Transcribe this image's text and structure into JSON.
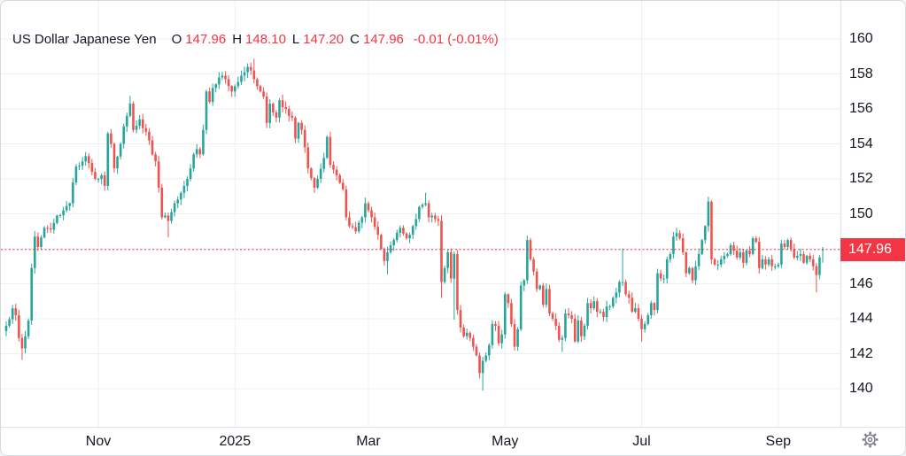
{
  "legend": {
    "title": "US Dollar Japanese Yen",
    "o_label": "O",
    "o": "147.96",
    "h_label": "H",
    "h": "148.10",
    "l_label": "L",
    "l": "147.20",
    "c_label": "C",
    "c": "147.96",
    "change": "-0.01 (-0.01%)"
  },
  "colors": {
    "up": "#26a69a",
    "down": "#ef5350",
    "accent": "#f23645",
    "text": "#131722",
    "grid": "#edeff3",
    "axis_border": "#e0e3eb",
    "icon": "#787b86",
    "label_text": "#ffffff"
  },
  "price_axis": {
    "last_price_label": "147.96",
    "ticks": [
      {
        "label": "160",
        "price": 160
      },
      {
        "label": "158",
        "price": 158
      },
      {
        "label": "156",
        "price": 156
      },
      {
        "label": "154",
        "price": 154
      },
      {
        "label": "152",
        "price": 152
      },
      {
        "label": "150",
        "price": 150
      },
      {
        "label": "148",
        "price": 148
      },
      {
        "label": "146",
        "price": 146
      },
      {
        "label": "144",
        "price": 144
      },
      {
        "label": "142",
        "price": 142
      },
      {
        "label": "140",
        "price": 140
      }
    ]
  },
  "time_axis": {
    "labels": [
      {
        "label": "Nov",
        "day": 29
      },
      {
        "label": "2025",
        "day": 72
      },
      {
        "label": "Mar",
        "day": 114
      },
      {
        "label": "May",
        "day": 157
      },
      {
        "label": "Jul",
        "day": 200
      },
      {
        "label": "Sep",
        "day": 243
      }
    ]
  },
  "settings_icon": "gear-icon",
  "chart_data": {
    "type": "candlestick",
    "title": "US Dollar Japanese Yen",
    "ohlc": {
      "open": 147.96,
      "high": 148.1,
      "low": 147.2,
      "close": 147.96,
      "change": -0.01,
      "change_pct": "-0.01%"
    },
    "ylim": [
      140,
      160
    ],
    "grid": true,
    "price_line": 147.96,
    "days_total": 258,
    "open_first": 143.3,
    "anchors": [
      [
        0,
        143.6
      ],
      [
        2,
        144.6
      ],
      [
        3,
        144.2
      ],
      [
        4,
        142.9
      ],
      [
        5,
        142.3
      ],
      [
        6,
        143.0
      ],
      [
        7,
        143.9
      ],
      [
        8,
        146.9
      ],
      [
        9,
        148.7
      ],
      [
        10,
        148.1
      ],
      [
        12,
        149.2
      ],
      [
        14,
        149.1
      ],
      [
        16,
        149.9
      ],
      [
        18,
        150.2
      ],
      [
        20,
        150.6
      ],
      [
        21,
        151.8
      ],
      [
        22,
        152.7
      ],
      [
        24,
        153.0
      ],
      [
        25,
        153.3
      ],
      [
        27,
        152.4
      ],
      [
        28,
        152.0
      ],
      [
        29,
        152.0
      ],
      [
        30,
        152.2
      ],
      [
        31,
        151.6
      ],
      [
        32,
        154.6
      ],
      [
        33,
        154.0
      ],
      [
        34,
        152.6
      ],
      [
        36,
        154.0
      ],
      [
        37,
        155.0
      ],
      [
        38,
        155.6
      ],
      [
        39,
        156.3
      ],
      [
        40,
        154.8
      ],
      [
        42,
        155.4
      ],
      [
        43,
        154.9
      ],
      [
        44,
        154.7
      ],
      [
        45,
        154.2
      ],
      [
        46,
        153.4
      ],
      [
        47,
        153.0
      ],
      [
        48,
        151.5
      ],
      [
        49,
        149.8
      ],
      [
        50,
        149.9
      ],
      [
        51,
        149.6
      ],
      [
        52,
        150.1
      ],
      [
        53,
        150.6
      ],
      [
        55,
        151.2
      ],
      [
        57,
        152.0
      ],
      [
        58,
        152.6
      ],
      [
        59,
        153.4
      ],
      [
        60,
        153.7
      ],
      [
        61,
        153.4
      ],
      [
        62,
        154.8
      ],
      [
        63,
        157.0
      ],
      [
        64,
        156.4
      ],
      [
        65,
        157.2
      ],
      [
        66,
        157.4
      ],
      [
        67,
        157.8
      ],
      [
        68,
        157.9
      ],
      [
        69,
        157.7
      ],
      [
        70,
        157.3
      ],
      [
        71,
        157.0
      ],
      [
        72,
        157.3
      ],
      [
        74,
        157.9
      ],
      [
        75,
        158.1
      ],
      [
        76,
        158.4
      ],
      [
        77,
        158.2
      ],
      [
        78,
        157.7
      ],
      [
        79,
        157.3
      ],
      [
        80,
        157.0
      ],
      [
        81,
        156.7
      ],
      [
        82,
        155.2
      ],
      [
        83,
        156.3
      ],
      [
        84,
        155.8
      ],
      [
        85,
        155.5
      ],
      [
        86,
        156.5
      ],
      [
        87,
        156.1
      ],
      [
        88,
        156.0
      ],
      [
        89,
        155.6
      ],
      [
        90,
        155.5
      ],
      [
        91,
        154.3
      ],
      [
        92,
        155.2
      ],
      [
        93,
        154.8
      ],
      [
        95,
        152.6
      ],
      [
        97,
        151.5
      ],
      [
        98,
        152.0
      ],
      [
        100,
        153.2
      ],
      [
        101,
        154.4
      ],
      [
        102,
        152.8
      ],
      [
        104,
        152.2
      ],
      [
        106,
        151.4
      ],
      [
        107,
        149.8
      ],
      [
        108,
        149.3
      ],
      [
        110,
        149.0
      ],
      [
        112,
        149.8
      ],
      [
        113,
        150.6
      ],
      [
        114,
        150.2
      ],
      [
        115,
        149.8
      ],
      [
        117,
        148.8
      ],
      [
        118,
        148.0
      ],
      [
        119,
        147.3
      ],
      [
        120,
        147.8
      ],
      [
        121,
        148.2
      ],
      [
        122,
        148.5
      ],
      [
        124,
        149.2
      ],
      [
        126,
        148.6
      ],
      [
        127,
        148.8
      ],
      [
        128,
        149.3
      ],
      [
        129,
        149.7
      ],
      [
        130,
        150.4
      ],
      [
        132,
        150.6
      ],
      [
        133,
        149.8
      ],
      [
        134,
        149.9
      ],
      [
        135,
        149.7
      ],
      [
        136,
        149.6
      ],
      [
        137,
        146.1
      ],
      [
        138,
        146.9
      ],
      [
        139,
        147.8
      ],
      [
        140,
        146.3
      ],
      [
        141,
        147.7
      ],
      [
        142,
        144.5
      ],
      [
        143,
        143.5
      ],
      [
        144,
        143.0
      ],
      [
        145,
        143.2
      ],
      [
        146,
        142.9
      ],
      [
        147,
        142.4
      ],
      [
        148,
        141.9
      ],
      [
        149,
        140.9
      ],
      [
        150,
        141.6
      ],
      [
        151,
        141.9
      ],
      [
        152,
        142.5
      ],
      [
        153,
        143.7
      ],
      [
        154,
        143.6
      ],
      [
        155,
        142.6
      ],
      [
        156,
        143.1
      ],
      [
        157,
        145.4
      ],
      [
        158,
        144.9
      ],
      [
        159,
        143.7
      ],
      [
        160,
        142.4
      ],
      [
        161,
        143.4
      ],
      [
        162,
        145.9
      ],
      [
        163,
        146.2
      ],
      [
        164,
        148.5
      ],
      [
        165,
        147.4
      ],
      [
        166,
        146.7
      ],
      [
        167,
        145.7
      ],
      [
        168,
        145.9
      ],
      [
        169,
        144.8
      ],
      [
        170,
        145.7
      ],
      [
        171,
        144.3
      ],
      [
        172,
        144.0
      ],
      [
        173,
        143.6
      ],
      [
        174,
        142.8
      ],
      [
        175,
        142.9
      ],
      [
        176,
        144.3
      ],
      [
        177,
        144.2
      ],
      [
        178,
        144.0
      ],
      [
        179,
        142.7
      ],
      [
        180,
        143.9
      ],
      [
        181,
        143.0
      ],
      [
        182,
        143.6
      ],
      [
        183,
        144.9
      ],
      [
        184,
        144.6
      ],
      [
        185,
        145.0
      ],
      [
        186,
        144.4
      ],
      [
        187,
        144.4
      ],
      [
        188,
        144.1
      ],
      [
        189,
        144.7
      ],
      [
        190,
        144.7
      ],
      [
        191,
        145.2
      ],
      [
        192,
        145.5
      ],
      [
        193,
        146.1
      ],
      [
        194,
        146.1
      ],
      [
        195,
        145.4
      ],
      [
        196,
        145.2
      ],
      [
        197,
        144.4
      ],
      [
        198,
        144.6
      ],
      [
        199,
        144.0
      ],
      [
        200,
        143.4
      ],
      [
        201,
        143.7
      ],
      [
        202,
        144.2
      ],
      [
        203,
        144.9
      ],
      [
        204,
        144.5
      ],
      [
        205,
        146.6
      ],
      [
        206,
        146.3
      ],
      [
        207,
        146.3
      ],
      [
        208,
        147.4
      ],
      [
        209,
        147.7
      ],
      [
        210,
        148.7
      ],
      [
        211,
        148.9
      ],
      [
        212,
        148.6
      ],
      [
        213,
        147.8
      ],
      [
        214,
        146.6
      ],
      [
        215,
        146.9
      ],
      [
        216,
        146.2
      ],
      [
        217,
        147.0
      ],
      [
        218,
        147.7
      ],
      [
        219,
        148.5
      ],
      [
        220,
        149.3
      ],
      [
        221,
        150.7
      ],
      [
        222,
        147.4
      ],
      [
        223,
        147.1
      ],
      [
        224,
        147.1
      ],
      [
        225,
        147.4
      ],
      [
        226,
        147.6
      ],
      [
        227,
        147.7
      ],
      [
        228,
        148.2
      ],
      [
        229,
        147.9
      ],
      [
        230,
        147.5
      ],
      [
        231,
        147.8
      ],
      [
        232,
        147.2
      ],
      [
        233,
        147.9
      ],
      [
        234,
        147.7
      ],
      [
        235,
        148.6
      ],
      [
        236,
        148.4
      ],
      [
        237,
        146.9
      ],
      [
        238,
        147.4
      ],
      [
        239,
        147.1
      ],
      [
        240,
        147.4
      ],
      [
        241,
        147.0
      ],
      [
        242,
        147.0
      ],
      [
        243,
        147.1
      ],
      [
        244,
        148.3
      ],
      [
        245,
        148.1
      ],
      [
        246,
        148.5
      ],
      [
        247,
        148.0
      ],
      [
        248,
        147.5
      ],
      [
        249,
        147.6
      ],
      [
        250,
        147.7
      ],
      [
        251,
        147.2
      ],
      [
        252,
        147.6
      ],
      [
        253,
        147.4
      ],
      [
        254,
        147.0
      ],
      [
        255,
        146.5
      ],
      [
        256,
        147.5
      ],
      [
        257,
        147.96
      ]
    ],
    "wick_extremes": [
      [
        5,
        "l",
        141.65
      ],
      [
        39,
        "h",
        156.74
      ],
      [
        51,
        "l",
        148.65
      ],
      [
        78,
        "h",
        158.87
      ],
      [
        82,
        "l",
        154.9
      ],
      [
        120,
        "l",
        146.54
      ],
      [
        132,
        "h",
        151.21
      ],
      [
        137,
        "l",
        145.19
      ],
      [
        141,
        "l",
        143.95
      ],
      [
        150,
        "l",
        139.89
      ],
      [
        164,
        "h",
        148.65
      ],
      [
        175,
        "l",
        142.11
      ],
      [
        194,
        "h",
        148.02
      ],
      [
        200,
        "l",
        142.68
      ],
      [
        211,
        "h",
        149.19
      ],
      [
        221,
        "h",
        150.92
      ],
      [
        237,
        "l",
        146.58
      ],
      [
        255,
        "l",
        145.5
      ],
      [
        257,
        "h",
        148.1
      ],
      [
        257,
        "l",
        147.2
      ]
    ]
  }
}
